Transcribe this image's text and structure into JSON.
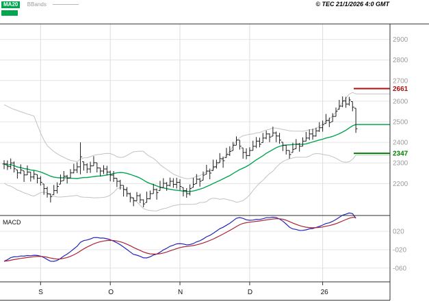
{
  "header": {
    "ma20_label": "MA20",
    "bbands_label": "BBands",
    "ma20_color": "#00a550",
    "copyright": "© TEC 21/1/2026 4:0 GMT"
  },
  "chart_data": {
    "type": "candlestick",
    "x_axis": {
      "labels": [
        "S",
        "O",
        "N",
        "D",
        "26"
      ],
      "label_indices": [
        11,
        32,
        53,
        74,
        96
      ]
    },
    "y_axis": {
      "ticks": [
        2200,
        2300,
        2400,
        2500,
        2600,
        2700,
        2800,
        2900
      ],
      "range": [
        2045,
        2975
      ]
    },
    "levels": [
      {
        "label": "2661",
        "value": 2661,
        "color": "#aa1111"
      },
      {
        "label": "2347",
        "value": 2347,
        "color": "#008000"
      }
    ],
    "series": {
      "high": [
        2313,
        2312,
        2322,
        2307,
        2267,
        2293,
        2262,
        2288,
        2257,
        2262,
        2244,
        2236,
        2198,
        2185,
        2151,
        2193,
        2206,
        2244,
        2261,
        2242,
        2270,
        2296,
        2303,
        2400,
        2306,
        2298,
        2306,
        2333,
        2301,
        2277,
        2289,
        2286,
        2263,
        2261,
        2226,
        2218,
        2191,
        2183,
        2156,
        2132,
        2159,
        2151,
        2123,
        2161,
        2166,
        2198,
        2176,
        2213,
        2226,
        2207,
        2229,
        2226,
        2228,
        2221,
        2181,
        2178,
        2196,
        2228,
        2246,
        2227,
        2259,
        2291,
        2273,
        2316,
        2316,
        2348,
        2331,
        2373,
        2381,
        2402,
        2429,
        2411,
        2373,
        2371,
        2376,
        2408,
        2426,
        2423,
        2446,
        2457,
        2444,
        2476,
        2453,
        2446,
        2401,
        2388,
        2361,
        2398,
        2416,
        2397,
        2424,
        2451,
        2463,
        2466,
        2471,
        2498,
        2506,
        2538,
        2521,
        2542,
        2569,
        2606,
        2623,
        2621,
        2621,
        2598,
        2566
      ],
      "low": [
        2270,
        2266,
        2270,
        2254,
        2224,
        2246,
        2208,
        2241,
        2210,
        2220,
        2201,
        2190,
        2146,
        2132,
        2108,
        2146,
        2152,
        2197,
        2214,
        2200,
        2227,
        2250,
        2251,
        2245,
        2263,
        2251,
        2252,
        2286,
        2254,
        2235,
        2246,
        2240,
        2211,
        2208,
        2183,
        2171,
        2137,
        2136,
        2109,
        2090,
        2116,
        2105,
        2085,
        2108,
        2123,
        2151,
        2122,
        2166,
        2179,
        2165,
        2186,
        2180,
        2176,
        2168,
        2138,
        2131,
        2142,
        2181,
        2199,
        2185,
        2216,
        2245,
        2221,
        2263,
        2273,
        2301,
        2277,
        2326,
        2334,
        2360,
        2386,
        2365,
        2321,
        2318,
        2333,
        2361,
        2372,
        2376,
        2399,
        2415,
        2401,
        2430,
        2401,
        2393,
        2358,
        2341,
        2321,
        2351,
        2369,
        2355,
        2381,
        2405,
        2411,
        2413,
        2428,
        2451,
        2452,
        2491,
        2474,
        2500,
        2526,
        2560,
        2571,
        2568,
        2578,
        2551,
        2446
      ],
      "close": [
        2295,
        2282,
        2300,
        2272,
        2252,
        2266,
        2242,
        2256,
        2232,
        2246,
        2226,
        2206,
        2176,
        2150,
        2136,
        2166,
        2186,
        2212,
        2236,
        2226,
        2252,
        2266,
        2281,
        2330,
        2291,
        2271,
        2286,
        2301,
        2276,
        2261,
        2271,
        2256,
        2241,
        2226,
        2211,
        2191,
        2171,
        2151,
        2131,
        2116,
        2141,
        2121,
        2101,
        2126,
        2151,
        2171,
        2156,
        2181,
        2201,
        2191,
        2211,
        2196,
        2206,
        2186,
        2166,
        2151,
        2176,
        2196,
        2221,
        2211,
        2241,
        2261,
        2251,
        2281,
        2301,
        2321,
        2311,
        2341,
        2356,
        2386,
        2411,
        2381,
        2351,
        2336,
        2361,
        2381,
        2406,
        2391,
        2421,
        2441,
        2426,
        2446,
        2431,
        2411,
        2386,
        2361,
        2341,
        2366,
        2391,
        2381,
        2406,
        2421,
        2441,
        2431,
        2456,
        2471,
        2486,
        2506,
        2496,
        2526,
        2551,
        2576,
        2601,
        2586,
        2606,
        2571,
        2466
      ]
    },
    "indicators": {
      "ma20": {
        "period": 20,
        "color": "#00a550"
      },
      "bbands": {
        "period": 20,
        "stddev": 2,
        "color": "#c2c2c2",
        "prehistory": [
          2560,
          2530,
          2490,
          2450,
          2400,
          2360,
          2330,
          2310,
          2300,
          2295
        ]
      },
      "macd": {
        "label": "MACD",
        "fast": 12,
        "slow": 26,
        "signal": 9,
        "scale": 100,
        "seed_fast_offset": -15,
        "seed_slow_offset": 35,
        "macd_color": "#2222bb",
        "signal_color": "#aa2233",
        "range": [
          -0.9,
          0.5
        ],
        "ticks": [
          {
            "label": "020",
            "value": 0.2
          },
          {
            "label": "-020",
            "value": -0.2
          },
          {
            "label": "-060",
            "value": -0.6
          }
        ]
      }
    }
  }
}
